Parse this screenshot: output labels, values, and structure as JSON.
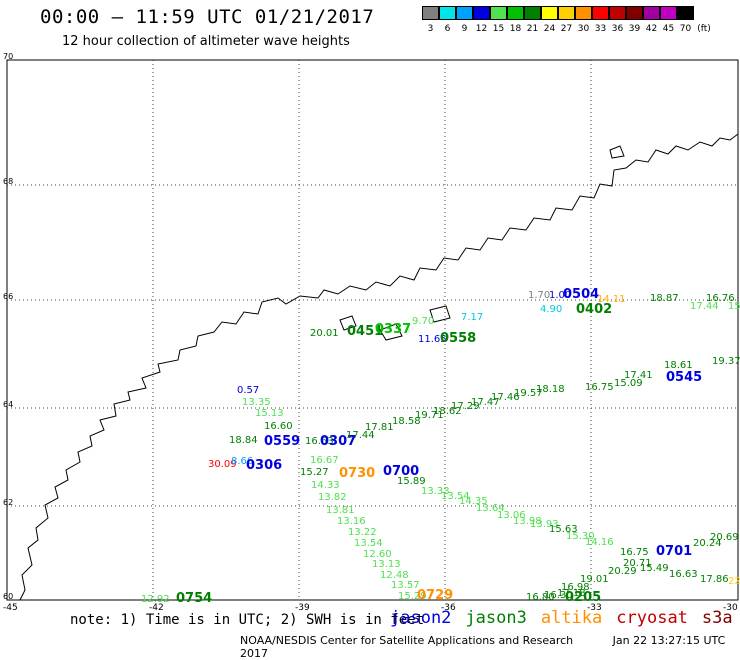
{
  "header": {
    "title": "00:00 – 11:59 UTC 01/21/2017",
    "subtitle": "12 hour collection of altimeter wave heights"
  },
  "legend": {
    "colors": [
      "#808080",
      "#00e5e5",
      "#00a0ff",
      "#0000e0",
      "#50e050",
      "#00c000",
      "#008000",
      "#ffff00",
      "#ffd000",
      "#ff9000",
      "#ff0000",
      "#c00000",
      "#800000",
      "#a000a0",
      "#c000c0",
      "#000000"
    ],
    "labels": [
      "3",
      "6",
      "9",
      "12",
      "15",
      "18",
      "21",
      "24",
      "27",
      "30",
      "33",
      "36",
      "39",
      "42",
      "45",
      "70",
      "(ft)"
    ]
  },
  "axes": {
    "lat_labels": [
      "70",
      "68",
      "66",
      "64",
      "62",
      "60"
    ],
    "lon_labels": [
      "-45",
      "-42",
      "-39",
      "-36",
      "-33",
      "-30"
    ]
  },
  "observations": [
    {
      "t": "1.70",
      "c": "#808080"
    },
    {
      "t": "1.00",
      "c": "#0000e0"
    },
    {
      "t": "0504",
      "c": "#0000e0"
    },
    {
      "t": "4.90",
      "c": "#00c8e0"
    },
    {
      "t": "0402",
      "c": "#008000"
    },
    {
      "t": "14.11",
      "c": "#ffb000"
    },
    {
      "t": "18.87",
      "c": "#008000"
    },
    {
      "t": "16.76",
      "c": "#008000"
    },
    {
      "t": "17.44",
      "c": "#50e050"
    },
    {
      "t": "15.0",
      "c": "#50e050"
    },
    {
      "t": "20.01",
      "c": "#008000"
    },
    {
      "t": "0451",
      "c": "#008000"
    },
    {
      "t": "0337",
      "c": "#00c000"
    },
    {
      "t": "9.70",
      "c": "#50e050"
    },
    {
      "t": "7.17",
      "c": "#00c8e0"
    },
    {
      "t": "11.65",
      "c": "#0000e0"
    },
    {
      "t": "0558",
      "c": "#008000"
    },
    {
      "t": "16.75",
      "c": "#008000"
    },
    {
      "t": "15.09",
      "c": "#008000"
    },
    {
      "t": "17.41",
      "c": "#008000"
    },
    {
      "t": "18.61",
      "c": "#008000"
    },
    {
      "t": "19.37",
      "c": "#008000"
    },
    {
      "t": "0545",
      "c": "#0000e0"
    },
    {
      "t": "0.57",
      "c": "#0000e0"
    },
    {
      "t": "13.35",
      "c": "#50e050"
    },
    {
      "t": "15.13",
      "c": "#50e050"
    },
    {
      "t": "16.60",
      "c": "#008000"
    },
    {
      "t": "18.84",
      "c": "#008000"
    },
    {
      "t": "0559",
      "c": "#0000e0"
    },
    {
      "t": "16.63",
      "c": "#008000"
    },
    {
      "t": "0307",
      "c": "#0000e0"
    },
    {
      "t": "17.44",
      "c": "#008000"
    },
    {
      "t": "17.81",
      "c": "#008000"
    },
    {
      "t": "18.58",
      "c": "#008000"
    },
    {
      "t": "19.71",
      "c": "#008000"
    },
    {
      "t": "18.62",
      "c": "#008000"
    },
    {
      "t": "17.29",
      "c": "#008000"
    },
    {
      "t": "17.47",
      "c": "#008000"
    },
    {
      "t": "17.46",
      "c": "#008000"
    },
    {
      "t": "19.57",
      "c": "#008000"
    },
    {
      "t": "18.18",
      "c": "#008000"
    },
    {
      "t": "30.09",
      "c": "#ff0000"
    },
    {
      "t": "8.66",
      "c": "#00a0ff"
    },
    {
      "t": "0306",
      "c": "#0000e0"
    },
    {
      "t": "16.67",
      "c": "#50e050"
    },
    {
      "t": "15.27",
      "c": "#008000"
    },
    {
      "t": "0730",
      "c": "#ff9000"
    },
    {
      "t": "0700",
      "c": "#0000e0"
    },
    {
      "t": "15.89",
      "c": "#008000"
    },
    {
      "t": "14.33",
      "c": "#50e050"
    },
    {
      "t": "13.82",
      "c": "#50e050"
    },
    {
      "t": "13.81",
      "c": "#50e050"
    },
    {
      "t": "13.16",
      "c": "#50e050"
    },
    {
      "t": "13.22",
      "c": "#50e050"
    },
    {
      "t": "13.54",
      "c": "#50e050"
    },
    {
      "t": "12.60",
      "c": "#50e050"
    },
    {
      "t": "13.13",
      "c": "#50e050"
    },
    {
      "t": "12.48",
      "c": "#50e050"
    },
    {
      "t": "13.57",
      "c": "#50e050"
    },
    {
      "t": "15.29",
      "c": "#50e050"
    },
    {
      "t": "0729",
      "c": "#ff9000"
    },
    {
      "t": "12.92",
      "c": "#50e050"
    },
    {
      "t": "0754",
      "c": "#008000"
    },
    {
      "t": "13.33",
      "c": "#50e050"
    },
    {
      "t": "13.54",
      "c": "#50e050"
    },
    {
      "t": "14.35",
      "c": "#50e050"
    },
    {
      "t": "13.64",
      "c": "#50e050"
    },
    {
      "t": "13.06",
      "c": "#50e050"
    },
    {
      "t": "13.98",
      "c": "#50e050"
    },
    {
      "t": "13.93",
      "c": "#50e050"
    },
    {
      "t": "15.63",
      "c": "#008000"
    },
    {
      "t": "15.30",
      "c": "#50e050"
    },
    {
      "t": "14.16",
      "c": "#50e050"
    },
    {
      "t": "16.75",
      "c": "#008000"
    },
    {
      "t": "0701",
      "c": "#0000e0"
    },
    {
      "t": "20.24",
      "c": "#008000"
    },
    {
      "t": "20.69",
      "c": "#008000"
    },
    {
      "t": "20.71",
      "c": "#008000"
    },
    {
      "t": "15.49",
      "c": "#008000"
    },
    {
      "t": "16.63",
      "c": "#008000"
    },
    {
      "t": "17.86",
      "c": "#008000"
    },
    {
      "t": "19.01",
      "c": "#008000"
    },
    {
      "t": "20.29",
      "c": "#008000"
    },
    {
      "t": "17.18",
      "c": "#008000"
    },
    {
      "t": "16.30",
      "c": "#008000"
    },
    {
      "t": "16.80",
      "c": "#008000"
    },
    {
      "t": "0205",
      "c": "#008000"
    },
    {
      "t": "16.98",
      "c": "#008000"
    },
    {
      "t": "22",
      "c": "#ffd000"
    }
  ],
  "note": "note: 1) Time is in UTC; 2) SWH is in feet",
  "satellites": [
    {
      "name": "jason2",
      "color": "#0000e0"
    },
    {
      "name": "jason3",
      "color": "#008000"
    },
    {
      "name": "altika",
      "color": "#ff9000"
    },
    {
      "name": "cryosat",
      "color": "#c00000"
    },
    {
      "name": "s3a",
      "color": "#800000"
    }
  ],
  "footer": {
    "credit": "NOAA/NESDIS Center for Satellite Applications and Research",
    "timestamp": "Jan 22 13:27:15 UTC 2017"
  }
}
